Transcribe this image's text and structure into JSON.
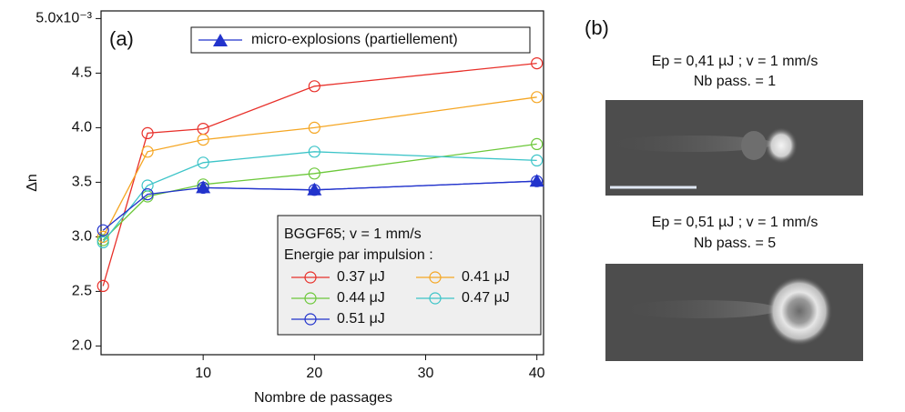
{
  "chart_data": {
    "type": "line",
    "panel_label": "(a)",
    "x_label": "Nombre de passages",
    "y_label": "Δn",
    "x": [
      1,
      5,
      10,
      20,
      40
    ],
    "xlim": [
      0.82,
      40.6
    ],
    "xticks": [
      10,
      20,
      30,
      40
    ],
    "ylim": [
      1.92,
      5.07
    ],
    "yticks": [
      {
        "value": 2,
        "label": "2.0"
      },
      2.5,
      {
        "value": 3,
        "label": "3.0"
      },
      3.5,
      {
        "value": 4,
        "label": "4.0"
      },
      4.5,
      {
        "value": 5,
        "label": "5.0x10⁻³"
      }
    ],
    "legend_title_lines": [
      "BGGF65; v = 1 mm/s",
      "Energie par impulsion :"
    ],
    "legend_position": "lower right",
    "series": [
      {
        "name": "0.37 μJ",
        "color": "#e8302a",
        "marker": "circle",
        "values": [
          2.55,
          3.95,
          3.99,
          4.38,
          4.59
        ]
      },
      {
        "name": "0.41 μJ",
        "color": "#f5a623",
        "marker": "circle",
        "values": [
          3.0,
          3.78,
          3.89,
          4.0,
          4.28
        ]
      },
      {
        "name": "0.44 μJ",
        "color": "#6cc83a",
        "marker": "circle",
        "values": [
          2.97,
          3.37,
          3.48,
          3.58,
          3.85
        ]
      },
      {
        "name": "0.47 μJ",
        "color": "#3cc4c8",
        "marker": "circle",
        "values": [
          2.95,
          3.47,
          3.68,
          3.78,
          3.7
        ]
      },
      {
        "name": "0.51 μJ",
        "color": "#2233cc",
        "marker": "circle",
        "values": [
          3.06,
          3.39,
          3.45,
          3.43,
          3.51
        ]
      },
      {
        "name": "micro-explosions (partiellement)",
        "color": "#2233cc",
        "marker": "triangle",
        "legend_position": "upper right",
        "values": [
          null,
          null,
          3.45,
          3.43,
          3.51
        ]
      }
    ]
  },
  "panel_b": {
    "label": "(b)",
    "images": [
      {
        "caption_lines": [
          "Ep = 0,41 µJ ; v = 1 mm/s",
          "Nb pass. = 1"
        ]
      },
      {
        "caption_lines": [
          "Ep = 0,51 µJ ; v = 1 mm/s",
          "Nb pass. = 5"
        ]
      }
    ]
  }
}
